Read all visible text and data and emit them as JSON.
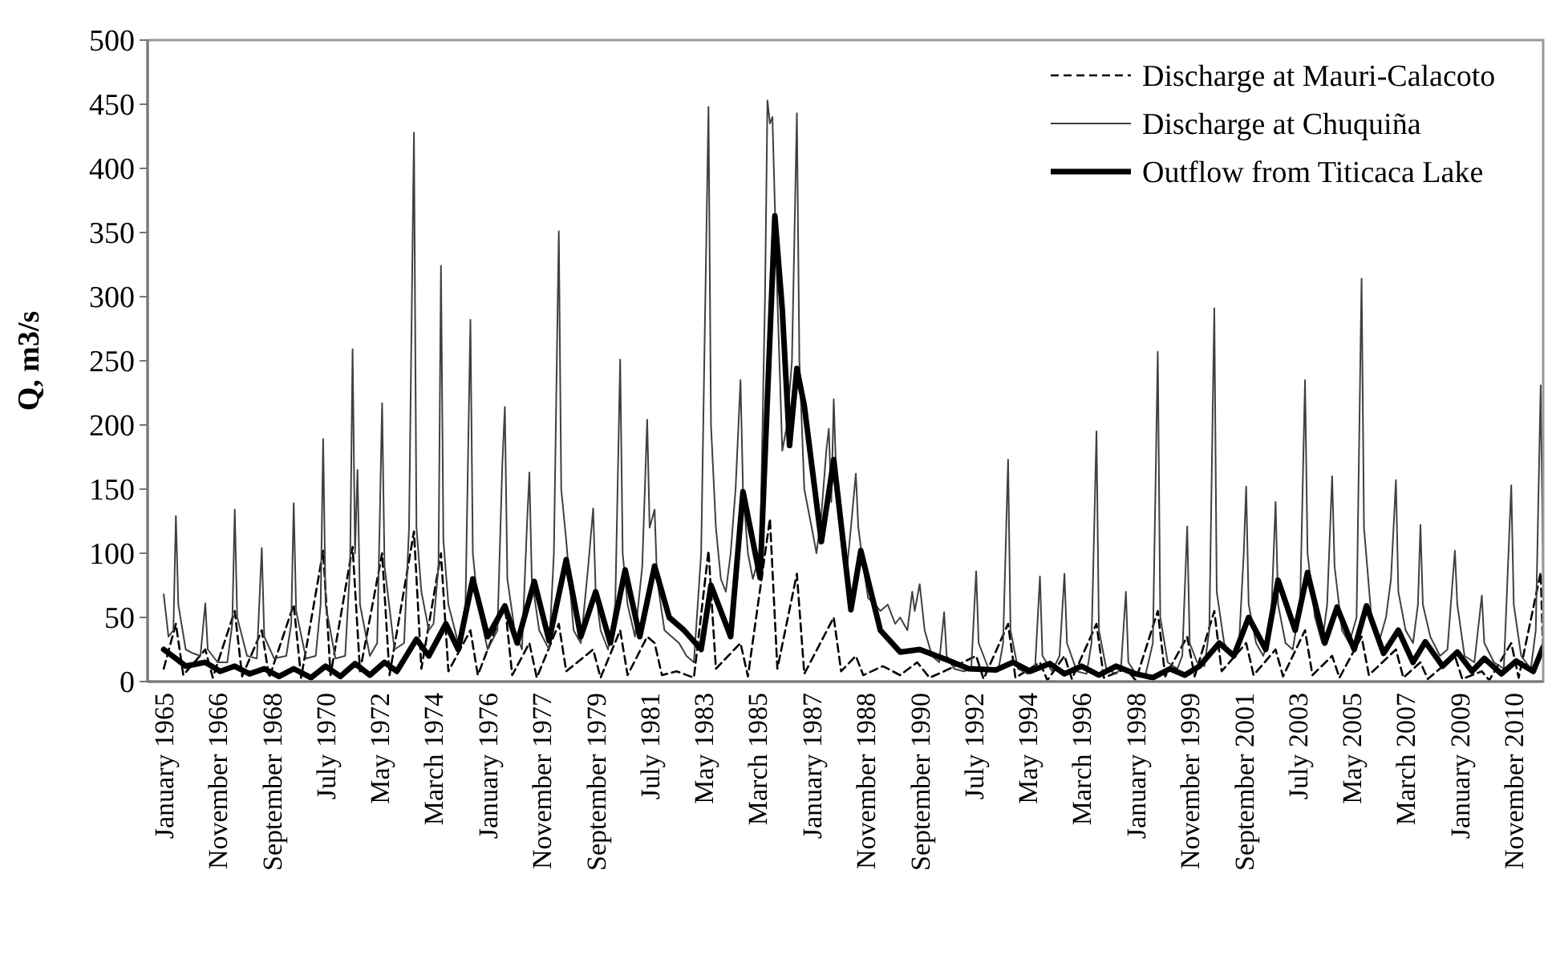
{
  "chart_data": {
    "type": "line",
    "ylabel": "Q, m3/s",
    "ylim": [
      0,
      500
    ],
    "yticks": [
      0,
      50,
      100,
      150,
      200,
      250,
      300,
      350,
      400,
      450,
      500
    ],
    "xlim": [
      "1964-06-15",
      "2011-11"
    ],
    "xticks": [
      {
        "value": "1965-01",
        "label": "January 1965"
      },
      {
        "value": "1966-11",
        "label": "November 1966"
      },
      {
        "value": "1968-09",
        "label": "September 1968"
      },
      {
        "value": "1970-07",
        "label": "July 1970"
      },
      {
        "value": "1972-05",
        "label": "May 1972"
      },
      {
        "value": "1974-03",
        "label": "March 1974"
      },
      {
        "value": "1976-01",
        "label": "January 1976"
      },
      {
        "value": "1977-11",
        "label": "November 1977"
      },
      {
        "value": "1979-09",
        "label": "September 1979"
      },
      {
        "value": "1981-07",
        "label": "July 1981"
      },
      {
        "value": "1983-05",
        "label": "May 1983"
      },
      {
        "value": "1985-03",
        "label": "March 1985"
      },
      {
        "value": "1987-01",
        "label": "January 1987"
      },
      {
        "value": "1988-11",
        "label": "November 1988"
      },
      {
        "value": "1990-09",
        "label": "September 1990"
      },
      {
        "value": "1992-07",
        "label": "July 1992"
      },
      {
        "value": "1994-05",
        "label": "May 1994"
      },
      {
        "value": "1996-03",
        "label": "March 1996"
      },
      {
        "value": "1998-01",
        "label": "January 1998"
      },
      {
        "value": "1999-11",
        "label": "November 1999"
      },
      {
        "value": "2001-09",
        "label": "September 2001"
      },
      {
        "value": "2003-07",
        "label": "July 2003"
      },
      {
        "value": "2005-05",
        "label": "May 2005"
      },
      {
        "value": "2007-03",
        "label": "March 2007"
      },
      {
        "value": "2009-01",
        "label": "January 2009"
      },
      {
        "value": "2010-11",
        "label": "November 2010"
      }
    ],
    "grid": false,
    "legend": "top right",
    "marker": "none",
    "series": [
      {
        "name": "Discharge at Mauri-Calacoto",
        "color": "#000000",
        "line_style": "dashed",
        "x": [
          "1965-01",
          "1965-06",
          "1965-09",
          "1966-06",
          "1966-09",
          "1967-06",
          "1967-09",
          "1968-05",
          "1968-08",
          "1969-06",
          "1969-09",
          "1970-06",
          "1970-09",
          "1971-06",
          "1971-09",
          "1972-06",
          "1972-09",
          "1973-07",
          "1973-10",
          "1974-06",
          "1974-09",
          "1975-06",
          "1975-09",
          "1976-08",
          "1976-11",
          "1977-06",
          "1977-09",
          "1978-06",
          "1978-09",
          "1979-08",
          "1979-11",
          "1980-07",
          "1980-10",
          "1981-06",
          "1981-09",
          "1981-12",
          "1982-06",
          "1983-01",
          "1983-07",
          "1983-10",
          "1984-08",
          "1984-11",
          "1985-08",
          "1985-11",
          "1986-07",
          "1986-10",
          "1987-10",
          "1988-01",
          "1988-07",
          "1988-10",
          "1989-06",
          "1990-01",
          "1990-08",
          "1991-01",
          "1991-07",
          "1992-08",
          "1992-11",
          "1993-09",
          "1993-12",
          "1994-10",
          "1995-01",
          "1995-08",
          "1995-11",
          "1996-09",
          "1996-12",
          "1997-09",
          "1998-01",
          "1998-10",
          "1999-01",
          "1999-10",
          "2000-01",
          "2000-09",
          "2000-12",
          "2001-10",
          "2002-01",
          "2002-10",
          "2003-01",
          "2003-10",
          "2004-01",
          "2004-09",
          "2004-12",
          "2005-09",
          "2005-12",
          "2006-11",
          "2007-02",
          "2007-09",
          "2007-12",
          "2008-11",
          "2009-02",
          "2009-10",
          "2010-01",
          "2010-10",
          "2011-01",
          "2011-10",
          "2011-11"
        ],
        "values": [
          10,
          45,
          5,
          25,
          3,
          55,
          4,
          40,
          3,
          60,
          3,
          102,
          5,
          105,
          8,
          100,
          5,
          117,
          10,
          100,
          8,
          40,
          5,
          60,
          5,
          30,
          3,
          45,
          8,
          25,
          3,
          40,
          5,
          35,
          30,
          5,
          8,
          3,
          102,
          10,
          30,
          4,
          127,
          10,
          84,
          6,
          50,
          8,
          20,
          5,
          12,
          5,
          15,
          3,
          8,
          20,
          2,
          45,
          3,
          15,
          1,
          20,
          2,
          45,
          3,
          10,
          1,
          55,
          4,
          35,
          4,
          55,
          8,
          30,
          5,
          25,
          4,
          40,
          5,
          20,
          3,
          35,
          5,
          25,
          3,
          15,
          2,
          20,
          2,
          8,
          1,
          30,
          3,
          85,
          20
        ]
      },
      {
        "name": "Discharge at Chuquiña",
        "color": "#404040",
        "line_style": "solid",
        "x": [
          "1965-01",
          "1965-03",
          "1965-05",
          "1965-06",
          "1965-07",
          "1965-10",
          "1966-01",
          "1966-04",
          "1966-06",
          "1966-07",
          "1966-11",
          "1967-03",
          "1967-05",
          "1967-06",
          "1967-07",
          "1967-11",
          "1968-03",
          "1968-05",
          "1968-06",
          "1968-10",
          "1969-03",
          "1969-05",
          "1969-06",
          "1969-07",
          "1969-11",
          "1970-03",
          "1970-05",
          "1970-06",
          "1970-07",
          "1970-11",
          "1971-03",
          "1971-05",
          "1971-06",
          "1971-07",
          "1971-08",
          "1971-09",
          "1972-01",
          "1972-04",
          "1972-05",
          "1972-06",
          "1972-07",
          "1972-11",
          "1973-03",
          "1973-05",
          "1973-07",
          "1973-08",
          "1973-10",
          "1974-01",
          "1974-03",
          "1974-05",
          "1974-06",
          "1974-07",
          "1974-09",
          "1975-01",
          "1975-04",
          "1975-06",
          "1975-07",
          "1975-09",
          "1976-01",
          "1976-05",
          "1976-07",
          "1976-08",
          "1976-09",
          "1976-12",
          "1977-03",
          "1977-05",
          "1977-06",
          "1977-07",
          "1977-10",
          "1978-02",
          "1978-04",
          "1978-06",
          "1978-07",
          "1978-09",
          "1978-12",
          "1979-03",
          "1979-06",
          "1979-08",
          "1979-09",
          "1979-11",
          "1980-02",
          "1980-05",
          "1980-07",
          "1980-08",
          "1980-10",
          "1981-01",
          "1981-04",
          "1981-06",
          "1981-07",
          "1981-09",
          "1981-10",
          "1982-01",
          "1982-04",
          "1982-07",
          "1982-10",
          "1983-01",
          "1983-04",
          "1983-07",
          "1983-08",
          "1983-10",
          "1983-12",
          "1984-02",
          "1984-04",
          "1984-06",
          "1984-08",
          "1984-09",
          "1984-11",
          "1985-01",
          "1985-04",
          "1985-06",
          "1985-07",
          "1985-08",
          "1985-09",
          "1985-11",
          "1986-01",
          "1986-03",
          "1986-05",
          "1986-07",
          "1986-08",
          "1986-10",
          "1987-01",
          "1987-03",
          "1987-05",
          "1987-07",
          "1987-08",
          "1987-09",
          "1987-10",
          "1987-11",
          "1988-01",
          "1988-03",
          "1988-05",
          "1988-07",
          "1988-08",
          "1988-10",
          "1988-12",
          "1989-03",
          "1989-05",
          "1989-08",
          "1989-11",
          "1990-01",
          "1990-04",
          "1990-06",
          "1990-07",
          "1990-09",
          "1990-11",
          "1991-02",
          "1991-05",
          "1991-07",
          "1991-08",
          "1991-11",
          "1992-03",
          "1992-06",
          "1992-08",
          "1992-09",
          "1993-01",
          "1993-05",
          "1993-07",
          "1993-09",
          "1993-10",
          "1994-01",
          "1994-05",
          "1994-08",
          "1994-10",
          "1994-11",
          "1995-03",
          "1995-06",
          "1995-08",
          "1995-09",
          "1996-01",
          "1996-05",
          "1996-07",
          "1996-09",
          "1996-10",
          "1997-01",
          "1997-05",
          "1997-07",
          "1997-09",
          "1997-10",
          "1998-01",
          "1998-05",
          "1998-08",
          "1998-10",
          "1998-11",
          "1999-02",
          "1999-06",
          "1999-08",
          "1999-10",
          "1999-11",
          "2000-02",
          "2000-05",
          "2000-07",
          "2000-09",
          "2000-10",
          "2001-01",
          "2001-04",
          "2001-07",
          "2001-09",
          "2001-10",
          "2001-11",
          "2002-02",
          "2002-05",
          "2002-08",
          "2002-10",
          "2002-11",
          "2003-02",
          "2003-05",
          "2003-08",
          "2003-10",
          "2003-11",
          "2004-02",
          "2004-05",
          "2004-07",
          "2004-09",
          "2004-10",
          "2005-01",
          "2005-04",
          "2005-07",
          "2005-09",
          "2005-10",
          "2006-01",
          "2006-04",
          "2006-07",
          "2006-09",
          "2006-11",
          "2006-12",
          "2007-03",
          "2007-06",
          "2007-08",
          "2007-09",
          "2007-10",
          "2008-01",
          "2008-05",
          "2008-08",
          "2008-11",
          "2008-12",
          "2009-03",
          "2009-07",
          "2009-10",
          "2009-11",
          "2010-03",
          "2010-07",
          "2010-10",
          "2010-11",
          "2011-02",
          "2011-06",
          "2011-08",
          "2011-10",
          "2011-11"
        ],
        "values": [
          68,
          35,
          40,
          129,
          60,
          25,
          22,
          20,
          61,
          25,
          15,
          15,
          45,
          134,
          50,
          20,
          18,
          104,
          35,
          18,
          20,
          45,
          139,
          55,
          18,
          20,
          60,
          189,
          60,
          18,
          20,
          90,
          259,
          100,
          165,
          60,
          20,
          30,
          120,
          217,
          90,
          25,
          30,
          120,
          428,
          120,
          70,
          40,
          45,
          90,
          324,
          110,
          60,
          30,
          60,
          282,
          100,
          60,
          25,
          40,
          170,
          214,
          80,
          40,
          25,
          120,
          163,
          80,
          40,
          25,
          100,
          351,
          150,
          110,
          40,
          30,
          90,
          135,
          70,
          40,
          25,
          60,
          251,
          100,
          60,
          35,
          90,
          204,
          120,
          134,
          80,
          40,
          35,
          30,
          20,
          15,
          100,
          448,
          200,
          120,
          80,
          70,
          100,
          150,
          235,
          150,
          100,
          80,
          100,
          300,
          453,
          435,
          440,
          300,
          180,
          200,
          250,
          443,
          250,
          150,
          120,
          100,
          130,
          180,
          197,
          140,
          220,
          160,
          110,
          80,
          120,
          162,
          120,
          90,
          65,
          60,
          55,
          60,
          45,
          50,
          40,
          70,
          55,
          76,
          40,
          20,
          15,
          54,
          20,
          10,
          8,
          10,
          86,
          30,
          10,
          8,
          30,
          173,
          40,
          10,
          6,
          10,
          82,
          20,
          8,
          20,
          84,
          30,
          8,
          6,
          30,
          195,
          40,
          10,
          6,
          10,
          70,
          15,
          6,
          5,
          30,
          257,
          50,
          15,
          10,
          20,
          121,
          30,
          15,
          12,
          40,
          291,
          70,
          30,
          20,
          25,
          100,
          152,
          60,
          30,
          20,
          40,
          140,
          60,
          30,
          25,
          60,
          235,
          100,
          50,
          30,
          60,
          160,
          90,
          40,
          30,
          50,
          314,
          120,
          50,
          30,
          50,
          80,
          157,
          70,
          40,
          30,
          60,
          122,
          60,
          35,
          20,
          25,
          102,
          60,
          20,
          15,
          67,
          30,
          15,
          10,
          153,
          60,
          20,
          10,
          40,
          231,
          80
        ]
      },
      {
        "name": "Outflow from Titicaca Lake",
        "color": "#000000",
        "line_style": "solid",
        "x": [
          "1965-01",
          "1965-06",
          "1965-10",
          "1966-06",
          "1966-12",
          "1967-06",
          "1967-12",
          "1968-06",
          "1968-12",
          "1969-06",
          "1970-01",
          "1970-07",
          "1971-01",
          "1971-07",
          "1972-01",
          "1972-07",
          "1972-12",
          "1973-08",
          "1974-01",
          "1974-08",
          "1975-01",
          "1975-07",
          "1976-01",
          "1976-08",
          "1977-01",
          "1977-08",
          "1978-02",
          "1978-09",
          "1979-03",
          "1979-09",
          "1980-03",
          "1980-09",
          "1981-03",
          "1981-09",
          "1982-03",
          "1982-09",
          "1983-04",
          "1983-08",
          "1984-04",
          "1984-09",
          "1985-04",
          "1985-10",
          "1986-01",
          "1986-04",
          "1986-07",
          "1986-10",
          "1987-05",
          "1987-10",
          "1988-05",
          "1988-09",
          "1989-05",
          "1990-01",
          "1990-09",
          "1991-08",
          "1992-05",
          "1993-04",
          "1993-11",
          "1994-06",
          "1995-02",
          "1995-08",
          "1996-03",
          "1996-10",
          "1997-05",
          "1998-01",
          "1998-08",
          "1999-03",
          "1999-09",
          "2000-03",
          "2000-11",
          "2001-05",
          "2001-11",
          "2002-06",
          "2002-11",
          "2003-06",
          "2003-11",
          "2004-06",
          "2004-11",
          "2005-06",
          "2005-11",
          "2006-06",
          "2006-12",
          "2007-06",
          "2007-11",
          "2008-06",
          "2008-12",
          "2009-06",
          "2009-11",
          "2010-06",
          "2010-12",
          "2011-07",
          "2011-11"
        ],
        "values": [
          25,
          18,
          12,
          15,
          8,
          12,
          6,
          10,
          4,
          10,
          3,
          12,
          4,
          14,
          5,
          15,
          8,
          33,
          20,
          45,
          25,
          80,
          35,
          59,
          30,
          78,
          32,
          95,
          35,
          70,
          30,
          87,
          35,
          90,
          50,
          40,
          25,
          75,
          35,
          148,
          81,
          363,
          290,
          184,
          244,
          215,
          109,
          173,
          56,
          102,
          40,
          23,
          25,
          17,
          10,
          9,
          15,
          8,
          14,
          6,
          12,
          5,
          12,
          6,
          3,
          10,
          5,
          12,
          30,
          20,
          50,
          25,
          79,
          40,
          85,
          30,
          58,
          25,
          59,
          22,
          40,
          15,
          31,
          12,
          23,
          8,
          18,
          6,
          16,
          8,
          27
        ]
      }
    ]
  }
}
